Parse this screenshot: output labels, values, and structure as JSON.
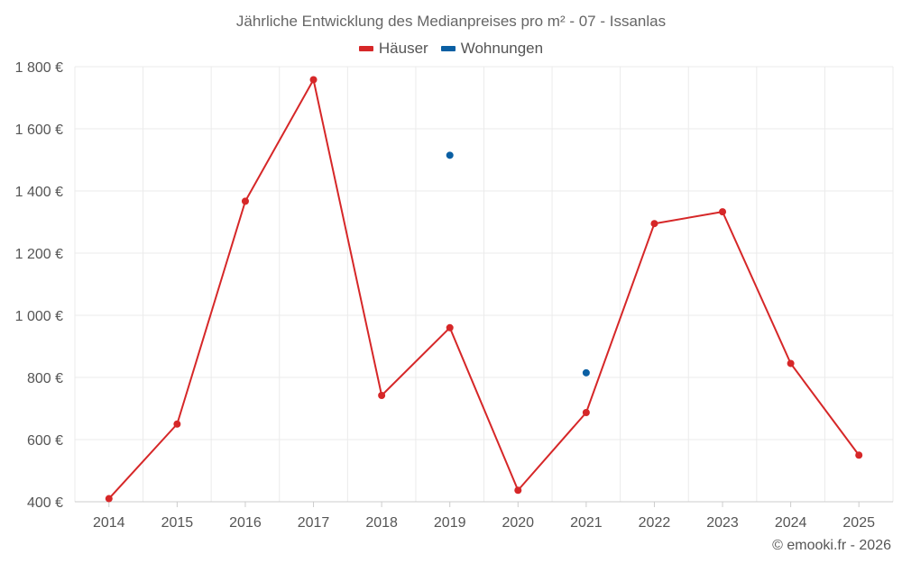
{
  "chart_data": {
    "type": "line",
    "title": "Jährliche Entwicklung des Medianpreises pro m² - 07 - Issanlas",
    "categories": [
      "2014",
      "2015",
      "2016",
      "2017",
      "2018",
      "2019",
      "2020",
      "2021",
      "2022",
      "2023",
      "2024",
      "2025"
    ],
    "series": [
      {
        "name": "Häuser",
        "color": "#d62728",
        "line": true,
        "values": [
          410,
          650,
          1367,
          1758,
          742,
          960,
          437,
          687,
          1295,
          1333,
          845,
          550
        ]
      },
      {
        "name": "Wohnungen",
        "color": "#0a5fa3",
        "line": false,
        "values": [
          null,
          null,
          null,
          null,
          null,
          1515,
          null,
          815,
          null,
          null,
          null,
          null
        ]
      }
    ],
    "ylim": [
      400,
      1800
    ],
    "yticks": [
      400,
      600,
      800,
      1000,
      1200,
      1400,
      1600,
      1800
    ],
    "ytick_labels": [
      "400 €",
      "600 €",
      "800 €",
      "1 000 €",
      "1 200 €",
      "1 400 €",
      "1 600 €",
      "1 800 €"
    ],
    "xlabel": "",
    "ylabel": "",
    "grid": true,
    "legend_position": "top-center"
  },
  "credit": "© emooki.fr - 2026"
}
